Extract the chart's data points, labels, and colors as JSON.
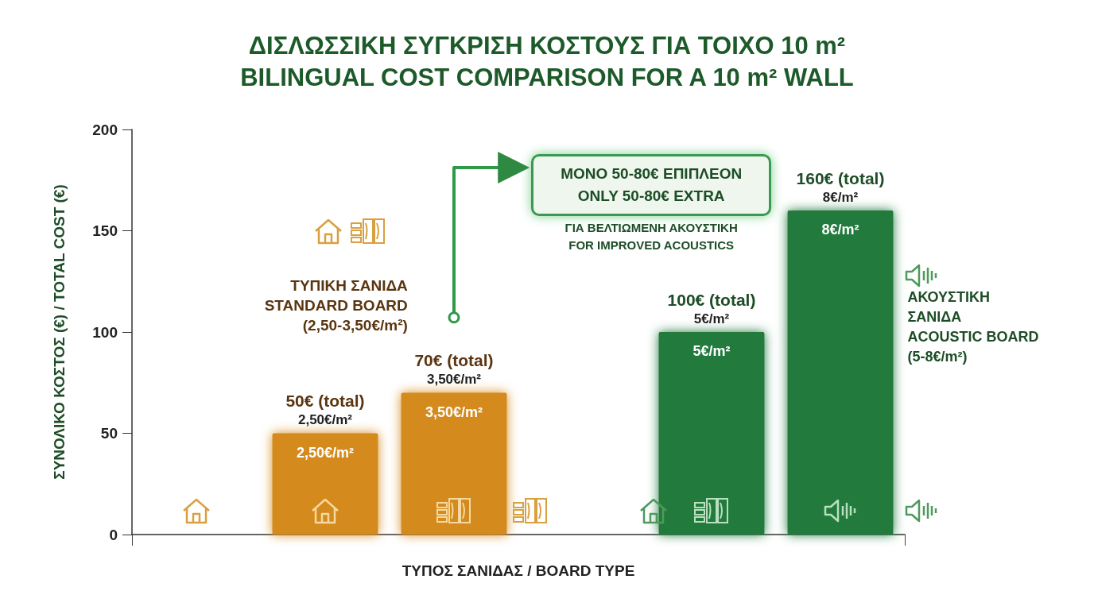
{
  "chart_data": {
    "type": "bar",
    "title": "ΔΙΣΛΩΣΣΙΚΗ ΣΥΓΚΡΙΣΗ ΚΟΣΤΟΥΣ ΓΙΑ ΤΟΙΧΟ 10 m²\nBILINGUAL COST COMPARISON FOR A 10 m² WALL",
    "xlabel": "ΤΥΠΟΣ ΣΑΝΙΔΑΣ / BOARD TYPE",
    "ylabel": "ΣΥΝΟΛΙΚΟ ΚΟΣΤΟΣ (€) / TOTAL COST (€)",
    "categories": [
      null,
      null,
      null,
      null,
      null,
      null
    ],
    "values": [
      null,
      50,
      70,
      null,
      100,
      160
    ],
    "colors": [
      null,
      "#d48a1c",
      "#d48a1c",
      null,
      "#237a3c",
      "#237a3c"
    ],
    "value_labels": [
      null,
      "50€ (total)\n2,50€/m²",
      "70€ (total)\n3,50€/m²",
      null,
      "100€ (total)\n5€/m²",
      "160€ (total)\n8€/m²"
    ],
    "ylim": [
      0,
      200
    ],
    "yticks": [
      0,
      50,
      100,
      150,
      200
    ],
    "annotations": [
      "ΤΥΠΙΚΗ ΣΑΝΙΔΑ\nSTANDARD BOARD\n(2,50-3,50€/m²)",
      "ΑΚΟΥΣΤΙΚΗ\nΣΑΝΙΔΑ\nACOUSTIC BOARD\n(5-8€/m²)",
      "ΜΟΝΟ 50-80€ ΕΠΙΠΛΕΟΝ\nONLY 50-80€ EXTRA",
      "ΓΙΑ ΒΕΛΤΙΩΜΕΝΗ ΑΚΟΥΣΤΙΚΗ\nFOR IMPROVED ACOUSTICS",
      {
        "text": "2,50€/m²",
        "y": 50
      },
      {
        "text": "3,50€/m²",
        "y": 70
      },
      {
        "text": "5€/m²",
        "y": 100
      },
      {
        "text": "8€/m²",
        "y": 160
      }
    ]
  }
}
